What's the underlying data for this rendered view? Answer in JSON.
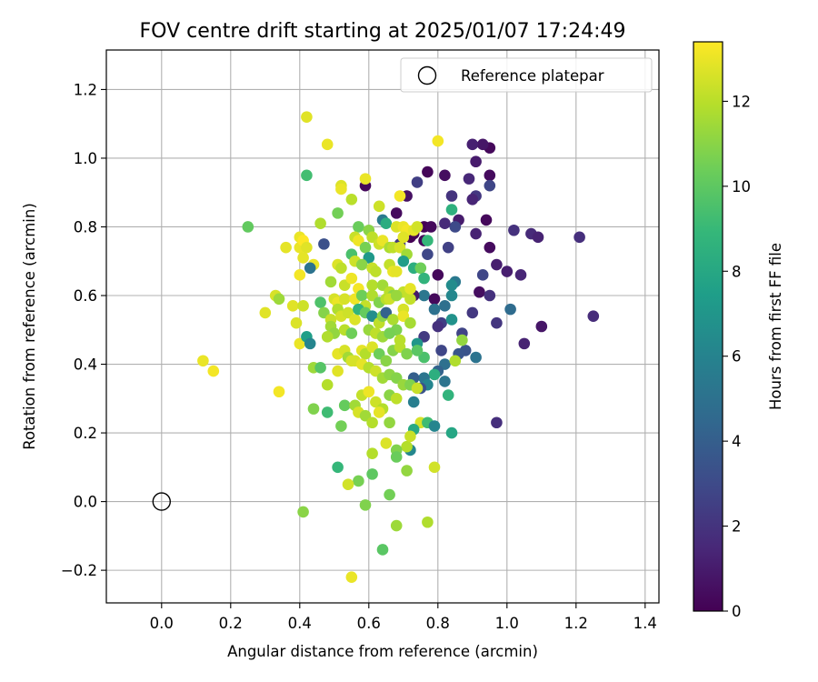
{
  "chart_data": {
    "type": "scatter",
    "title": "FOV centre drift starting at 2025/01/07 17:24:49",
    "xlabel": "Angular distance from reference (arcmin)",
    "ylabel": "Rotation from reference (arcmin)",
    "colorbar_label": "Hours from first FF file",
    "xlim": [
      -0.16,
      1.44
    ],
    "ylim": [
      -0.295,
      1.315
    ],
    "xticks": [
      0.0,
      0.2,
      0.4,
      0.6,
      0.8,
      1.0,
      1.2,
      1.4
    ],
    "xtick_labels": [
      "0.0",
      "0.2",
      "0.4",
      "0.6",
      "0.8",
      "1.0",
      "1.2",
      "1.4"
    ],
    "yticks": [
      -0.2,
      0.0,
      0.2,
      0.4,
      0.6,
      0.8,
      1.0,
      1.2
    ],
    "ytick_labels": [
      "−0.2",
      "0.0",
      "0.2",
      "0.4",
      "0.6",
      "0.8",
      "1.0",
      "1.2"
    ],
    "colorbar_range": [
      0,
      13.4
    ],
    "colorbar_ticks": [
      0,
      2,
      4,
      6,
      8,
      10,
      12
    ],
    "colorbar_tick_labels": [
      "0",
      "2",
      "4",
      "6",
      "8",
      "10",
      "12"
    ],
    "colormap": "viridis",
    "grid": true,
    "legend_position": "top-right",
    "legend": [
      {
        "label": "Reference platepar",
        "marker": "open-circle"
      }
    ],
    "reference_point": {
      "x": 0.0,
      "y": 0.0
    },
    "points": [
      [
        0.95,
        1.03,
        0.3
      ],
      [
        0.93,
        1.04,
        0.8
      ],
      [
        0.9,
        1.04,
        1.2
      ],
      [
        0.95,
        0.95,
        0.4
      ],
      [
        0.91,
        0.99,
        1.0
      ],
      [
        0.82,
        0.95,
        0.5
      ],
      [
        0.77,
        0.96,
        0.2
      ],
      [
        0.89,
        0.94,
        1.5
      ],
      [
        0.74,
        0.93,
        2.5
      ],
      [
        0.59,
        0.92,
        0.3
      ],
      [
        0.95,
        0.92,
        2.8
      ],
      [
        0.71,
        0.89,
        0.6
      ],
      [
        0.84,
        0.89,
        2.0
      ],
      [
        0.91,
        0.89,
        2.2
      ],
      [
        0.9,
        0.88,
        1.4
      ],
      [
        0.68,
        0.84,
        0.4
      ],
      [
        0.86,
        0.82,
        1.0
      ],
      [
        0.94,
        0.82,
        0.3
      ],
      [
        0.85,
        0.8,
        3.0
      ],
      [
        0.76,
        0.8,
        0.0
      ],
      [
        0.78,
        0.8,
        0.3
      ],
      [
        0.82,
        0.81,
        1.6
      ],
      [
        1.02,
        0.79,
        1.9
      ],
      [
        0.91,
        0.78,
        1.3
      ],
      [
        1.07,
        0.78,
        1.6
      ],
      [
        1.09,
        0.77,
        1.3
      ],
      [
        1.21,
        0.77,
        1.8
      ],
      [
        0.73,
        0.78,
        0.1
      ],
      [
        0.76,
        0.76,
        0.2
      ],
      [
        0.83,
        0.74,
        2.6
      ],
      [
        0.72,
        0.77,
        0.0
      ],
      [
        0.95,
        0.74,
        0.4
      ],
      [
        0.69,
        0.75,
        2.2
      ],
      [
        0.97,
        0.69,
        1.1
      ],
      [
        0.77,
        0.72,
        2.9
      ],
      [
        0.93,
        0.66,
        2.8
      ],
      [
        1.0,
        0.67,
        1.1
      ],
      [
        1.04,
        0.66,
        1.4
      ],
      [
        0.8,
        0.66,
        0.3
      ],
      [
        0.85,
        0.64,
        5.4
      ],
      [
        0.84,
        0.63,
        6.5
      ],
      [
        0.84,
        0.6,
        6.2
      ],
      [
        0.76,
        0.6,
        5.3
      ],
      [
        0.92,
        0.61,
        0.5
      ],
      [
        0.95,
        0.6,
        1.9
      ],
      [
        1.01,
        0.56,
        4.7
      ],
      [
        0.79,
        0.59,
        0.3
      ],
      [
        0.73,
        0.6,
        0.9
      ],
      [
        0.82,
        0.57,
        4.9
      ],
      [
        0.79,
        0.56,
        5.0
      ],
      [
        0.9,
        0.55,
        2.2
      ],
      [
        0.97,
        0.52,
        2.1
      ],
      [
        1.25,
        0.54,
        1.7
      ],
      [
        1.1,
        0.51,
        0.8
      ],
      [
        0.81,
        0.52,
        2.5
      ],
      [
        0.8,
        0.51,
        1.9
      ],
      [
        0.84,
        0.53,
        6.8
      ],
      [
        0.76,
        0.48,
        2.3
      ],
      [
        0.87,
        0.49,
        2.7
      ],
      [
        0.88,
        0.44,
        3.4
      ],
      [
        0.86,
        0.43,
        3.5
      ],
      [
        0.81,
        0.44,
        2.8
      ],
      [
        0.91,
        0.42,
        5.1
      ],
      [
        1.05,
        0.46,
        1.3
      ],
      [
        0.82,
        0.4,
        4.9
      ],
      [
        0.85,
        0.41,
        11.8
      ],
      [
        0.87,
        0.47,
        11.2
      ],
      [
        0.8,
        0.38,
        4.2
      ],
      [
        0.79,
        0.37,
        8.4
      ],
      [
        0.76,
        0.42,
        9.5
      ],
      [
        0.74,
        0.46,
        7.0
      ],
      [
        0.76,
        0.36,
        5.2
      ],
      [
        0.82,
        0.35,
        5.2
      ],
      [
        0.77,
        0.34,
        6.1
      ],
      [
        0.73,
        0.36,
        4.0
      ],
      [
        0.72,
        0.34,
        3.9
      ],
      [
        0.75,
        0.33,
        3.4
      ],
      [
        0.83,
        0.31,
        8.7
      ],
      [
        0.73,
        0.29,
        5.7
      ],
      [
        0.97,
        0.23,
        1.8
      ],
      [
        0.75,
        0.23,
        12.6
      ],
      [
        0.77,
        0.23,
        9.2
      ],
      [
        0.79,
        0.22,
        6.1
      ],
      [
        0.73,
        0.21,
        8.1
      ],
      [
        0.84,
        0.2,
        7.9
      ],
      [
        0.79,
        0.1,
        12.5
      ],
      [
        0.72,
        0.15,
        6.2
      ],
      [
        0.71,
        0.16,
        11.9
      ],
      [
        0.65,
        0.17,
        12.7
      ],
      [
        0.68,
        0.15,
        10.8
      ],
      [
        0.72,
        0.19,
        12.3
      ],
      [
        0.71,
        0.09,
        11.2
      ],
      [
        0.68,
        0.13,
        10.3
      ],
      [
        0.61,
        0.14,
        11.9
      ],
      [
        0.61,
        0.08,
        10.0
      ],
      [
        0.57,
        0.06,
        10.6
      ],
      [
        0.54,
        0.05,
        12.5
      ],
      [
        0.51,
        0.1,
        8.9
      ],
      [
        0.59,
        -0.01,
        10.8
      ],
      [
        0.66,
        0.02,
        10.5
      ],
      [
        0.68,
        -0.07,
        11.4
      ],
      [
        0.77,
        -0.06,
        11.8
      ],
      [
        0.41,
        -0.03,
        11.0
      ],
      [
        0.64,
        -0.14,
        9.9
      ],
      [
        0.55,
        -0.22,
        13.0
      ],
      [
        0.42,
        1.12,
        12.8
      ],
      [
        0.48,
        1.04,
        13.0
      ],
      [
        0.8,
        1.05,
        13.2
      ],
      [
        0.42,
        0.95,
        9.3
      ],
      [
        0.59,
        0.94,
        13.0
      ],
      [
        0.52,
        0.92,
        12.7
      ],
      [
        0.52,
        0.91,
        13.0
      ],
      [
        0.69,
        0.89,
        13.2
      ],
      [
        0.55,
        0.88,
        12.0
      ],
      [
        0.63,
        0.86,
        12.4
      ],
      [
        0.84,
        0.85,
        8.5
      ],
      [
        0.51,
        0.84,
        10.5
      ],
      [
        0.46,
        0.81,
        11.8
      ],
      [
        0.57,
        0.8,
        10.3
      ],
      [
        0.6,
        0.79,
        11.0
      ],
      [
        0.64,
        0.82,
        5.5
      ],
      [
        0.65,
        0.81,
        8.3
      ],
      [
        0.68,
        0.8,
        12.7
      ],
      [
        0.7,
        0.8,
        13.0
      ],
      [
        0.71,
        0.79,
        13.2
      ],
      [
        0.73,
        0.79,
        12.9
      ],
      [
        0.74,
        0.8,
        12.5
      ],
      [
        0.25,
        0.8,
        10.1
      ],
      [
        0.4,
        0.77,
        13.0
      ],
      [
        0.4,
        0.74,
        13.0
      ],
      [
        0.36,
        0.74,
        12.9
      ],
      [
        0.41,
        0.76,
        13.4
      ],
      [
        0.42,
        0.74,
        12.8
      ],
      [
        0.47,
        0.75,
        3.3
      ],
      [
        0.56,
        0.77,
        12.3
      ],
      [
        0.57,
        0.76,
        13.1
      ],
      [
        0.59,
        0.74,
        10.6
      ],
      [
        0.6,
        0.71,
        7.2
      ],
      [
        0.61,
        0.77,
        12.1
      ],
      [
        0.63,
        0.75,
        12.4
      ],
      [
        0.64,
        0.76,
        13.0
      ],
      [
        0.66,
        0.74,
        11.7
      ],
      [
        0.67,
        0.74,
        12.1
      ],
      [
        0.69,
        0.74,
        12.6
      ],
      [
        0.7,
        0.77,
        12.8
      ],
      [
        0.71,
        0.72,
        11.5
      ],
      [
        0.77,
        0.76,
        8.9
      ],
      [
        0.41,
        0.71,
        12.9
      ],
      [
        0.44,
        0.69,
        13.0
      ],
      [
        0.51,
        0.69,
        12.7
      ],
      [
        0.52,
        0.68,
        12.1
      ],
      [
        0.55,
        0.72,
        9.5
      ],
      [
        0.56,
        0.7,
        12.4
      ],
      [
        0.58,
        0.69,
        11.0
      ],
      [
        0.61,
        0.68,
        12.3
      ],
      [
        0.62,
        0.67,
        12.1
      ],
      [
        0.66,
        0.69,
        12.2
      ],
      [
        0.67,
        0.67,
        13.0
      ],
      [
        0.68,
        0.67,
        12.9
      ],
      [
        0.7,
        0.7,
        7.4
      ],
      [
        0.73,
        0.68,
        8.4
      ],
      [
        0.75,
        0.68,
        10.4
      ],
      [
        0.4,
        0.66,
        13.2
      ],
      [
        0.43,
        0.68,
        5.1
      ],
      [
        0.49,
        0.64,
        11.5
      ],
      [
        0.53,
        0.63,
        12.3
      ],
      [
        0.55,
        0.65,
        13.1
      ],
      [
        0.57,
        0.62,
        13.2
      ],
      [
        0.61,
        0.63,
        11.9
      ],
      [
        0.64,
        0.63,
        11.5
      ],
      [
        0.66,
        0.61,
        12.0
      ],
      [
        0.67,
        0.6,
        11.0
      ],
      [
        0.7,
        0.61,
        12.2
      ],
      [
        0.72,
        0.59,
        12.2
      ],
      [
        0.76,
        0.65,
        8.7
      ],
      [
        0.33,
        0.6,
        12.6
      ],
      [
        0.34,
        0.59,
        11.4
      ],
      [
        0.38,
        0.57,
        12.8
      ],
      [
        0.41,
        0.57,
        12.4
      ],
      [
        0.46,
        0.58,
        9.6
      ],
      [
        0.5,
        0.59,
        12.6
      ],
      [
        0.51,
        0.58,
        13.0
      ],
      [
        0.53,
        0.59,
        12.6
      ],
      [
        0.56,
        0.59,
        13.1
      ],
      [
        0.58,
        0.6,
        10.4
      ],
      [
        0.59,
        0.57,
        12.2
      ],
      [
        0.61,
        0.6,
        11.8
      ],
      [
        0.63,
        0.58,
        10.8
      ],
      [
        0.65,
        0.59,
        12.0
      ],
      [
        0.66,
        0.59,
        12.4
      ],
      [
        0.68,
        0.6,
        11.3
      ],
      [
        0.7,
        0.56,
        12.6
      ],
      [
        0.72,
        0.62,
        12.9
      ],
      [
        0.3,
        0.55,
        12.8
      ],
      [
        0.39,
        0.52,
        12.7
      ],
      [
        0.47,
        0.55,
        10.9
      ],
      [
        0.49,
        0.53,
        12.3
      ],
      [
        0.51,
        0.56,
        11.8
      ],
      [
        0.52,
        0.54,
        12.6
      ],
      [
        0.54,
        0.55,
        12.4
      ],
      [
        0.56,
        0.53,
        12.7
      ],
      [
        0.57,
        0.56,
        8.7
      ],
      [
        0.59,
        0.55,
        10.2
      ],
      [
        0.61,
        0.54,
        6.6
      ],
      [
        0.63,
        0.52,
        12.1
      ],
      [
        0.64,
        0.54,
        11.0
      ],
      [
        0.65,
        0.55,
        4.2
      ],
      [
        0.67,
        0.53,
        11.7
      ],
      [
        0.68,
        0.5,
        10.7
      ],
      [
        0.7,
        0.54,
        13.0
      ],
      [
        0.72,
        0.52,
        11.6
      ],
      [
        0.49,
        0.51,
        11.5
      ],
      [
        0.5,
        0.49,
        11.2
      ],
      [
        0.53,
        0.5,
        12.0
      ],
      [
        0.55,
        0.49,
        10.4
      ],
      [
        0.6,
        0.5,
        11.3
      ],
      [
        0.62,
        0.49,
        12.1
      ],
      [
        0.64,
        0.48,
        11.4
      ],
      [
        0.66,
        0.49,
        10.6
      ],
      [
        0.69,
        0.47,
        12.0
      ],
      [
        0.4,
        0.46,
        13.0
      ],
      [
        0.42,
        0.48,
        7.5
      ],
      [
        0.43,
        0.46,
        6.1
      ],
      [
        0.48,
        0.48,
        11.8
      ],
      [
        0.51,
        0.43,
        12.9
      ],
      [
        0.53,
        0.44,
        12.6
      ],
      [
        0.54,
        0.42,
        11.5
      ],
      [
        0.56,
        0.41,
        12.6
      ],
      [
        0.58,
        0.44,
        12.9
      ],
      [
        0.59,
        0.43,
        11.9
      ],
      [
        0.61,
        0.45,
        12.7
      ],
      [
        0.63,
        0.43,
        10.4
      ],
      [
        0.65,
        0.41,
        11.0
      ],
      [
        0.67,
        0.44,
        10.9
      ],
      [
        0.69,
        0.45,
        12.0
      ],
      [
        0.71,
        0.43,
        10.8
      ],
      [
        0.74,
        0.44,
        9.9
      ],
      [
        0.12,
        0.41,
        13.0
      ],
      [
        0.15,
        0.38,
        13.2
      ],
      [
        0.44,
        0.39,
        11.4
      ],
      [
        0.46,
        0.39,
        9.8
      ],
      [
        0.51,
        0.38,
        12.8
      ],
      [
        0.55,
        0.41,
        12.6
      ],
      [
        0.58,
        0.4,
        12.9
      ],
      [
        0.6,
        0.39,
        11.9
      ],
      [
        0.62,
        0.38,
        12.4
      ],
      [
        0.64,
        0.36,
        11.5
      ],
      [
        0.66,
        0.37,
        11.1
      ],
      [
        0.68,
        0.36,
        10.9
      ],
      [
        0.7,
        0.34,
        11.3
      ],
      [
        0.72,
        0.34,
        10.8
      ],
      [
        0.74,
        0.33,
        12.3
      ],
      [
        0.34,
        0.32,
        13.2
      ],
      [
        0.48,
        0.34,
        11.9
      ],
      [
        0.53,
        0.28,
        10.2
      ],
      [
        0.56,
        0.28,
        11.5
      ],
      [
        0.58,
        0.31,
        12.2
      ],
      [
        0.6,
        0.32,
        13.1
      ],
      [
        0.62,
        0.29,
        12.4
      ],
      [
        0.64,
        0.27,
        11.9
      ],
      [
        0.66,
        0.31,
        11.0
      ],
      [
        0.68,
        0.3,
        12.1
      ],
      [
        0.44,
        0.27,
        10.8
      ],
      [
        0.48,
        0.26,
        9.2
      ],
      [
        0.52,
        0.22,
        10.5
      ],
      [
        0.57,
        0.26,
        12.6
      ],
      [
        0.59,
        0.25,
        11.5
      ],
      [
        0.61,
        0.23,
        11.9
      ],
      [
        0.63,
        0.26,
        12.9
      ],
      [
        0.66,
        0.23,
        11.2
      ]
    ]
  }
}
